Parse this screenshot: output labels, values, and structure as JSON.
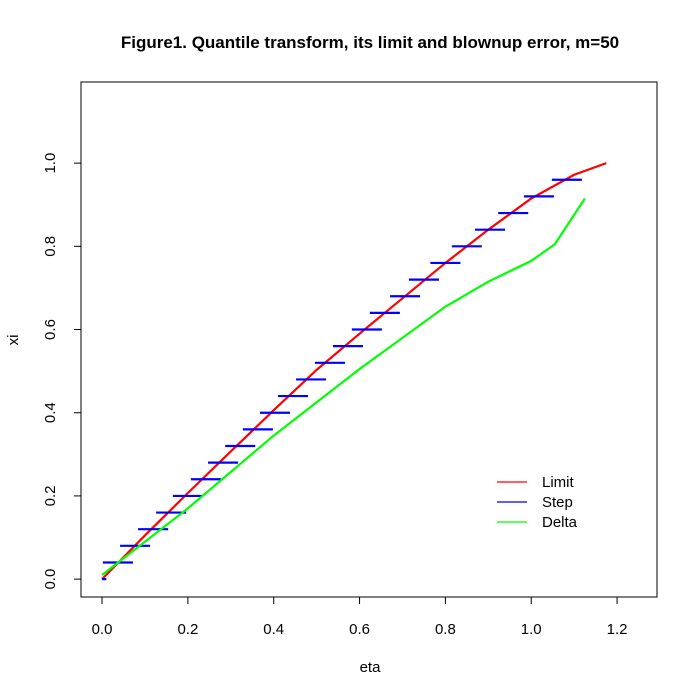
{
  "chart_data": {
    "type": "line",
    "title": "Figure1. Quantile transform, its limit and blownup error, m=50",
    "x_label": "eta",
    "y_label": "xi",
    "xlim": [
      -0.049,
      1.293
    ],
    "ylim": [
      -0.043,
      1.195
    ],
    "xticks": [
      {
        "value": 0,
        "label": "0.0"
      },
      {
        "value": 0.2,
        "label": "0.2"
      },
      {
        "value": 0.4,
        "label": "0.4"
      },
      {
        "value": 0.6,
        "label": "0.6"
      },
      {
        "value": 0.8,
        "label": "0.8"
      },
      {
        "value": 1,
        "label": "1.0"
      },
      {
        "value": 1.2,
        "label": "1.2"
      }
    ],
    "yticks": [
      {
        "value": 0,
        "label": "0.0"
      },
      {
        "value": 0.2,
        "label": "0.2"
      },
      {
        "value": 0.4,
        "label": "0.4"
      },
      {
        "value": 0.6,
        "label": "0.6"
      },
      {
        "value": 0.8,
        "label": "0.8"
      },
      {
        "value": 1,
        "label": "1.0"
      }
    ],
    "legend_position": "bottomright",
    "series": [
      {
        "name": "Limit",
        "color": "#ff0000",
        "style": "line",
        "x": [
          0,
          0.1,
          0.2,
          0.3,
          0.4,
          0.5,
          0.6,
          0.7,
          0.8,
          0.9,
          1.0,
          1.1,
          1.175
        ],
        "values": [
          0,
          0.105,
          0.207,
          0.307,
          0.406,
          0.503,
          0.59,
          0.675,
          0.76,
          0.84,
          0.915,
          0.972,
          1.0
        ]
      },
      {
        "name": "Step",
        "color": "#0000ff",
        "style": "segments",
        "x_start": [
          0,
          0.002,
          0.042,
          0.084,
          0.126,
          0.165,
          0.207,
          0.247,
          0.287,
          0.328,
          0.368,
          0.41,
          0.452,
          0.496,
          0.538,
          0.582,
          0.624,
          0.671,
          0.715,
          0.765,
          0.815,
          0.869,
          0.923,
          0.983,
          1.048
        ],
        "x_end": [
          0.01,
          0.072,
          0.112,
          0.154,
          0.196,
          0.235,
          0.277,
          0.317,
          0.357,
          0.398,
          0.438,
          0.48,
          0.522,
          0.566,
          0.608,
          0.652,
          0.694,
          0.741,
          0.785,
          0.835,
          0.885,
          0.939,
          0.993,
          1.053,
          1.118
        ],
        "values": [
          0,
          0.04,
          0.08,
          0.12,
          0.16,
          0.2,
          0.24,
          0.28,
          0.32,
          0.36,
          0.4,
          0.44,
          0.48,
          0.52,
          0.56,
          0.6,
          0.64,
          0.68,
          0.72,
          0.76,
          0.8,
          0.84,
          0.88,
          0.92,
          0.96
        ]
      },
      {
        "name": "Delta",
        "color": "#00ff00",
        "style": "line",
        "x": [
          0,
          0.2,
          0.4,
          0.6,
          0.8,
          0.9,
          1.0,
          1.055,
          1.125
        ],
        "values": [
          0.01,
          0.17,
          0.345,
          0.505,
          0.655,
          0.715,
          0.765,
          0.805,
          0.915
        ]
      }
    ]
  }
}
